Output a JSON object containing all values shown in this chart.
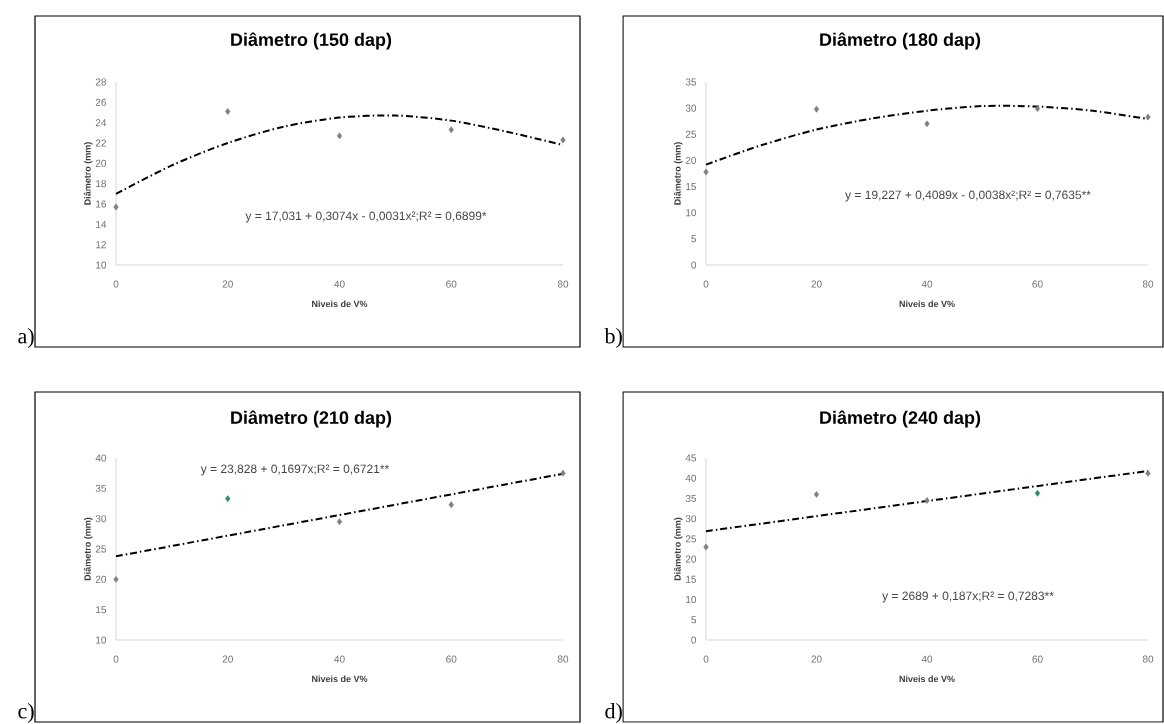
{
  "chart_data": [
    {
      "type": "scatter",
      "title": "Diâmetro (150 dap)",
      "xlabel": "Niveis de V%",
      "ylabel": "Diâmetro (mm)",
      "xlim": [
        0,
        80
      ],
      "ylim": [
        10,
        28
      ],
      "xticks": [
        0,
        20,
        40,
        60,
        80
      ],
      "yticks": [
        10,
        12,
        14,
        16,
        18,
        20,
        22,
        24,
        26,
        28
      ],
      "annotations": [
        "a)",
        "y = 17,031 + 0,3074x - 0,0031x²;R² = 0,6899*"
      ],
      "series": [
        {
          "x": [
            0,
            20,
            40,
            60,
            80
          ],
          "marker": "diamond",
          "values": [
            15.7,
            25.1,
            22.7,
            23.3,
            22.3
          ],
          "colors": [
            "#808080",
            "#808080",
            "#808080",
            "#808080",
            "#808080"
          ]
        },
        {
          "type": "line",
          "x": [
            0,
            10,
            20,
            30,
            40,
            50,
            60,
            70,
            80
          ],
          "values": [
            17.0,
            19.8,
            22.0,
            23.6,
            24.5,
            24.7,
            24.2,
            23.1,
            21.8
          ],
          "color": "#000000",
          "line_style": "dashed"
        }
      ]
    },
    {
      "type": "scatter",
      "title": "Diâmetro (180 dap)",
      "xlabel": "Niveis de V%",
      "ylabel": "Diâmetro (mm)",
      "xlim": [
        0,
        80
      ],
      "ylim": [
        0,
        35
      ],
      "xticks": [
        0,
        20,
        40,
        60,
        80
      ],
      "yticks": [
        0,
        5,
        10,
        15,
        20,
        25,
        30,
        35
      ],
      "annotations": [
        "b)",
        "y = 19,227 + 0,4089x - 0,0038x²;R² = 0,7635**"
      ],
      "series": [
        {
          "x": [
            0,
            20,
            40,
            60,
            80
          ],
          "marker": "diamond",
          "values": [
            17.8,
            29.8,
            27.0,
            29.9,
            28.3
          ],
          "colors": [
            "#808080",
            "#808080",
            "#808080",
            "#808080",
            "#808080"
          ]
        },
        {
          "type": "line",
          "x": [
            0,
            10,
            20,
            30,
            40,
            50,
            60,
            70,
            80
          ],
          "values": [
            19.2,
            22.9,
            25.9,
            28.0,
            29.5,
            30.4,
            30.3,
            29.5,
            27.9
          ],
          "color": "#000000",
          "line_style": "dashed"
        }
      ]
    },
    {
      "type": "scatter",
      "title": "Diâmetro (210 dap)",
      "xlabel": "Niveis de V%",
      "ylabel": "Diâmetro (mm)",
      "xlim": [
        0,
        80
      ],
      "ylim": [
        10,
        40
      ],
      "xticks": [
        0,
        20,
        40,
        60,
        80
      ],
      "yticks": [
        10,
        15,
        20,
        25,
        30,
        35,
        40
      ],
      "annotations": [
        "c)",
        "y = 23,828 + 0,1697x;R² = 0,6721**"
      ],
      "series": [
        {
          "x": [
            0,
            20,
            40,
            60,
            80
          ],
          "marker": "diamond",
          "values": [
            20.0,
            33.3,
            29.5,
            32.3,
            37.5
          ],
          "colors": [
            "#808080",
            "#2e8b6e",
            "#808080",
            "#808080",
            "#808080"
          ]
        },
        {
          "type": "line",
          "x": [
            0,
            80
          ],
          "values": [
            23.8,
            37.4
          ],
          "color": "#000000",
          "line_style": "dashed"
        }
      ]
    },
    {
      "type": "scatter",
      "title": "Diâmetro (240 dap)",
      "xlabel": "Niveis de V%",
      "ylabel": "Diâmetro (mm)",
      "xlim": [
        0,
        80
      ],
      "ylim": [
        0,
        45
      ],
      "xticks": [
        0,
        20,
        40,
        60,
        80
      ],
      "yticks": [
        0,
        5,
        10,
        15,
        20,
        25,
        30,
        35,
        40,
        45
      ],
      "annotations": [
        "d)",
        "y = 2689 + 0,187x;R² = 0,7283**"
      ],
      "series": [
        {
          "x": [
            0,
            20,
            40,
            60,
            80
          ],
          "marker": "diamond",
          "values": [
            23.0,
            36.0,
            34.5,
            36.3,
            41.2
          ],
          "colors": [
            "#808080",
            "#808080",
            "#808080",
            "#2e8b6e",
            "#808080"
          ]
        },
        {
          "type": "line",
          "x": [
            0,
            80
          ],
          "values": [
            26.9,
            41.8
          ],
          "color": "#000000",
          "line_style": "dashed"
        }
      ]
    }
  ]
}
